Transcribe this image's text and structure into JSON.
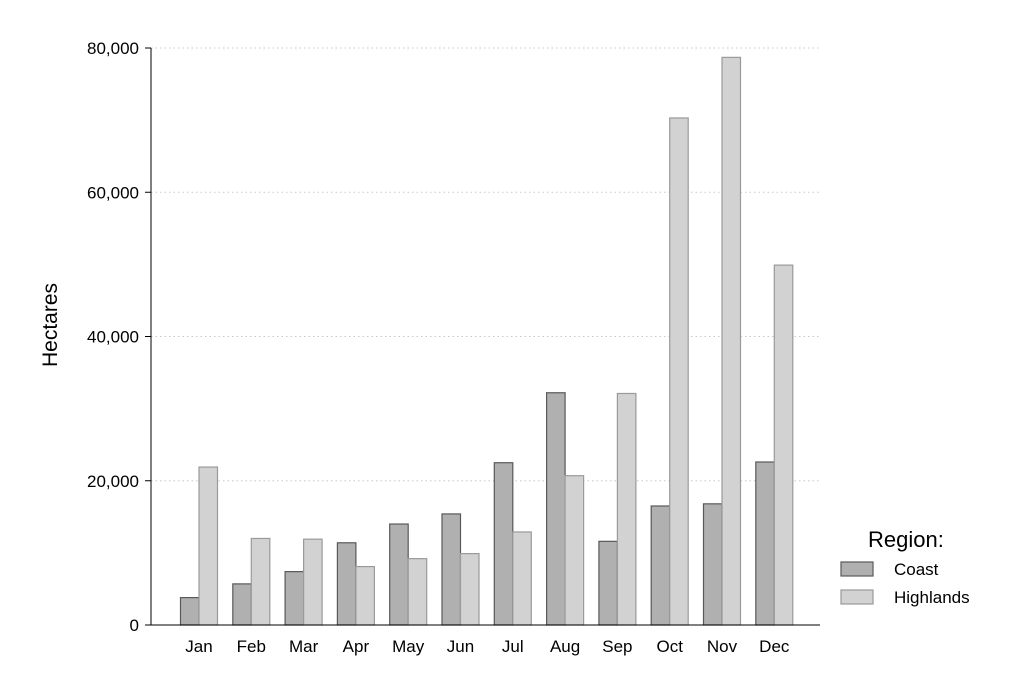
{
  "chart_data": {
    "type": "bar",
    "title": "",
    "xlabel": "",
    "ylabel": "Hectares",
    "ylim": [
      0,
      80000
    ],
    "yticks": [
      0,
      20000,
      40000,
      60000,
      80000
    ],
    "ytick_labels": [
      "0",
      "20,000",
      "40,000",
      "60,000",
      "80,000"
    ],
    "grid": true,
    "legend": {
      "title": "Region:",
      "placement": "right",
      "entries": [
        "Coast",
        "Highlands"
      ]
    },
    "categories": [
      "Jan",
      "Feb",
      "Mar",
      "Apr",
      "May",
      "Jun",
      "Jul",
      "Aug",
      "Sep",
      "Oct",
      "Nov",
      "Dec"
    ],
    "series": [
      {
        "name": "Coast",
        "color": "#b0b0b0",
        "values": [
          3800,
          5700,
          7400,
          11400,
          14000,
          15400,
          22500,
          32200,
          11600,
          16500,
          16800,
          22600
        ]
      },
      {
        "name": "Highlands",
        "color": "#d2d2d2",
        "values": [
          21900,
          12000,
          11900,
          8100,
          9200,
          9900,
          12900,
          20700,
          32100,
          70300,
          78700,
          49900
        ]
      }
    ]
  }
}
